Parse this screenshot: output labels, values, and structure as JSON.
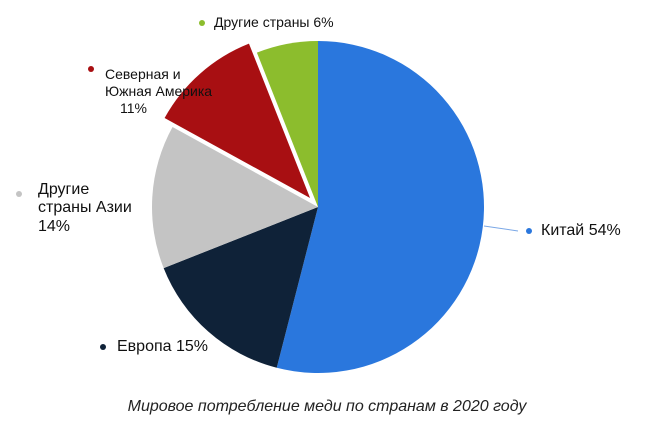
{
  "chart_data": {
    "type": "pie",
    "title": "",
    "caption": "Мировое потребление меди по странам в 2020 году",
    "slices": [
      {
        "key": "china",
        "label_lines": [
          "Китай 54%"
        ],
        "value": 54,
        "color": "#2a77dd"
      },
      {
        "key": "europe",
        "label_lines": [
          "Европа 15%"
        ],
        "value": 15,
        "color": "#0f2238"
      },
      {
        "key": "asia",
        "label_lines": [
          "Другие",
          "страны Азии",
          "14%"
        ],
        "value": 14,
        "color": "#c4c4c4"
      },
      {
        "key": "americas",
        "label_lines": [
          "Северная и",
          "Южная Америка",
          "11%"
        ],
        "value": 11,
        "color": "#a80f12"
      },
      {
        "key": "other",
        "label_lines": [
          "Другие страны 6%"
        ],
        "value": 6,
        "color": "#8cbd2d"
      }
    ]
  }
}
